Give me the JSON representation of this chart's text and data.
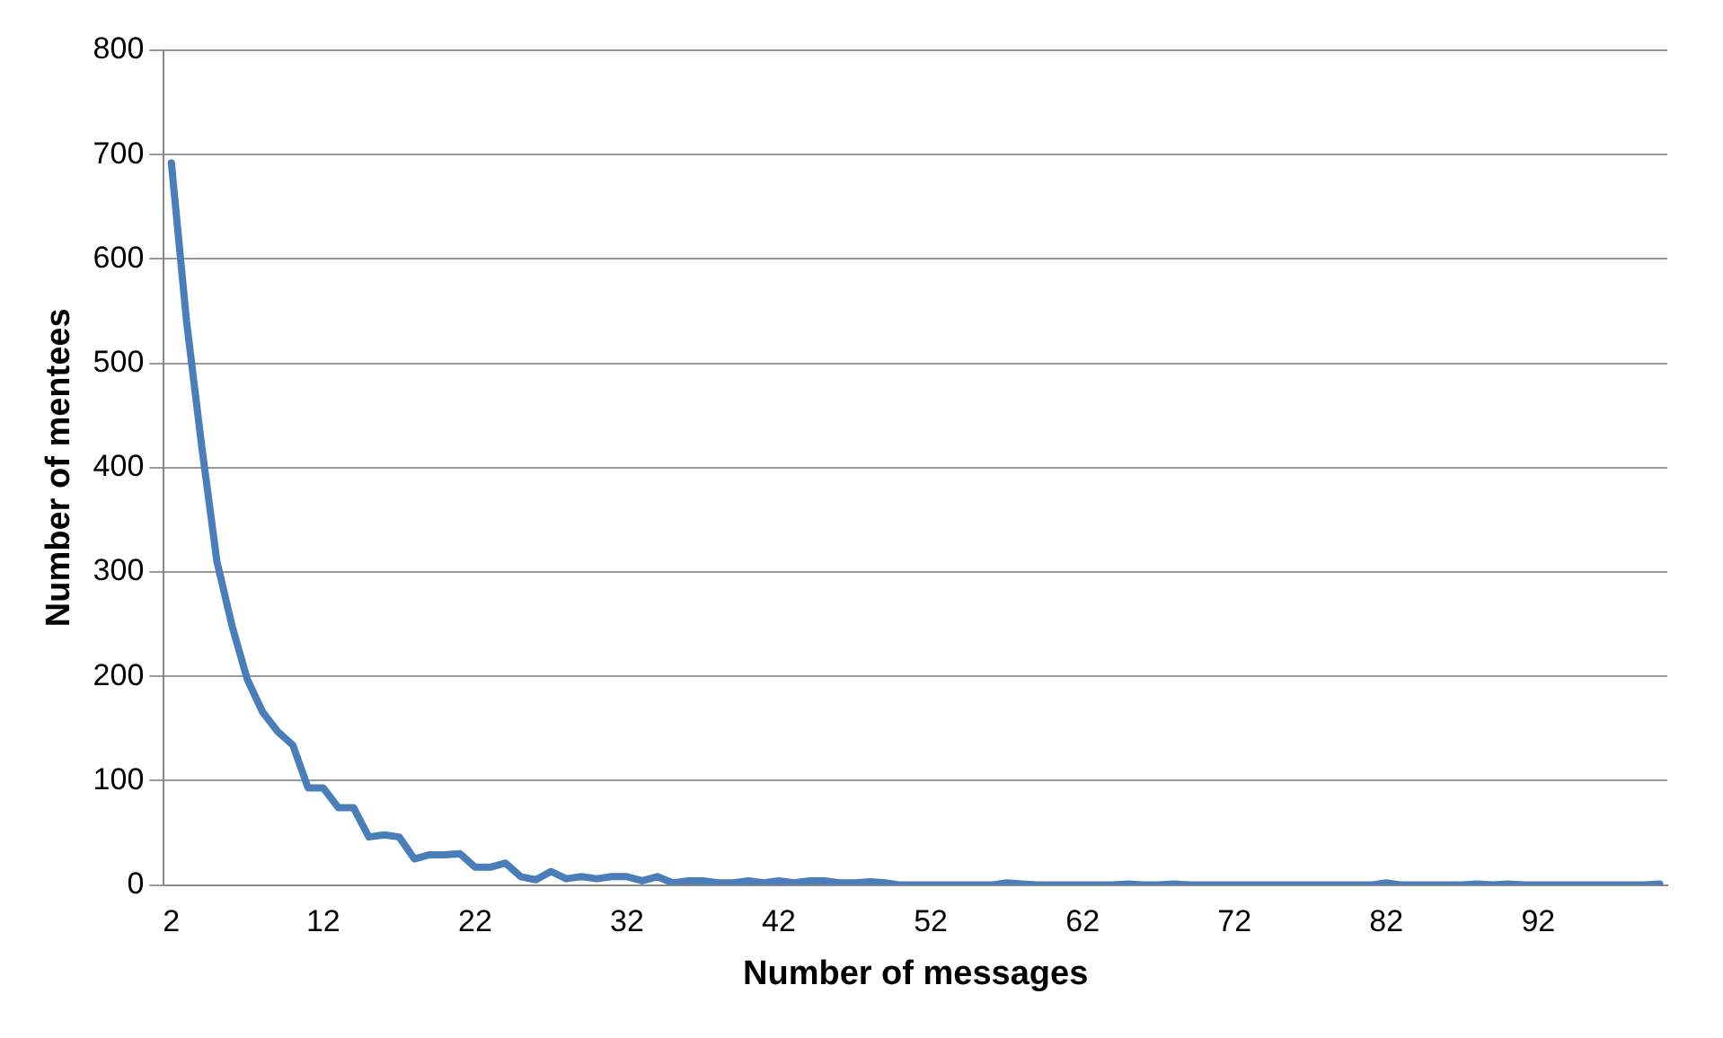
{
  "chart_data": {
    "type": "line",
    "xlabel": "Number of messages",
    "ylabel": "Number of mentees",
    "categories": [
      "2",
      null,
      null,
      null,
      null,
      null,
      null,
      null,
      null,
      null,
      "12",
      null,
      null,
      null,
      null,
      null,
      null,
      null,
      null,
      null,
      "22",
      null,
      null,
      null,
      null,
      null,
      null,
      null,
      null,
      null,
      "32",
      null,
      null,
      null,
      null,
      null,
      null,
      null,
      null,
      null,
      "42",
      null,
      null,
      null,
      null,
      null,
      null,
      null,
      null,
      null,
      "52",
      null,
      null,
      null,
      null,
      null,
      null,
      null,
      null,
      null,
      "62",
      null,
      null,
      null,
      null,
      null,
      null,
      null,
      null,
      null,
      "72",
      null,
      null,
      null,
      null,
      null,
      null,
      null,
      null,
      null,
      "82",
      null,
      null,
      null,
      null,
      null,
      null,
      null,
      null,
      null,
      "92",
      null,
      null,
      null,
      null,
      null,
      null,
      null,
      null
    ],
    "series": [
      {
        "color": "#4a7ebb",
        "values": [
          692,
          540,
          420,
          310,
          248,
          197,
          166,
          147,
          134,
          93,
          93,
          74,
          74,
          46,
          48,
          46,
          25,
          29,
          29,
          30,
          17,
          17,
          21,
          8,
          5,
          13,
          6,
          8,
          6,
          8,
          8,
          4,
          8,
          2,
          4,
          4,
          2,
          2,
          4,
          2,
          4,
          2,
          4,
          4,
          2,
          2,
          3,
          2,
          0,
          0,
          0,
          0,
          0,
          0,
          0,
          2,
          1,
          0,
          0,
          0,
          0,
          0,
          0,
          1,
          0,
          0,
          1,
          0,
          0,
          0,
          0,
          0,
          0,
          0,
          0,
          0,
          0,
          0,
          0,
          0,
          2,
          0,
          0,
          0,
          0,
          0,
          1,
          0,
          1,
          0,
          0,
          0,
          0,
          0,
          0,
          0,
          0,
          0,
          1
        ]
      }
    ],
    "ylim": [
      0,
      800
    ],
    "yticks": [
      0,
      100,
      200,
      300,
      400,
      500,
      600,
      700,
      800
    ],
    "grid": "y",
    "legend": false,
    "marker": "none",
    "line_style": "solid"
  }
}
